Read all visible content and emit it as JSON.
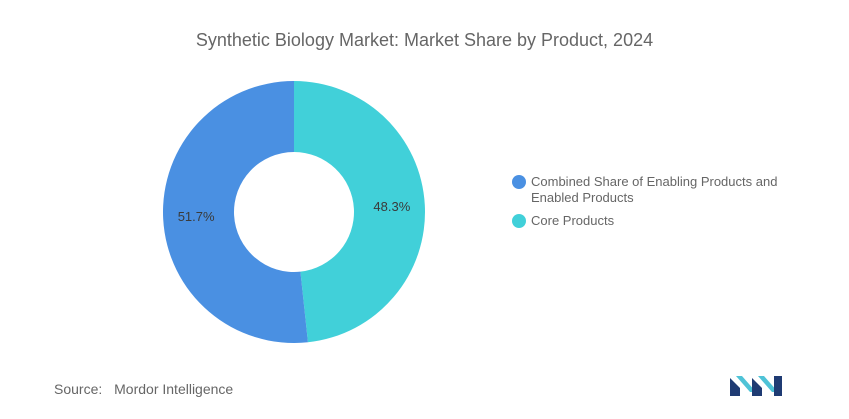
{
  "chart_data": {
    "type": "pie",
    "title": "Synthetic Biology Market: Market Share by Product, 2024",
    "donut": true,
    "slices": [
      {
        "label": "Combined Share of Enabling Products and Enabled Products",
        "value": 51.7,
        "value_label": "51.7%",
        "color": "#4a90e2"
      },
      {
        "label": "Core Products",
        "value": 48.3,
        "value_label": "48.3%",
        "color": "#41d0d9"
      }
    ],
    "legend_position": "right"
  },
  "source": {
    "label": "Source:",
    "name": "Mordor Intelligence"
  },
  "colors": {
    "logo_dark": "#1f3b73",
    "logo_light": "#4fc3d7"
  }
}
